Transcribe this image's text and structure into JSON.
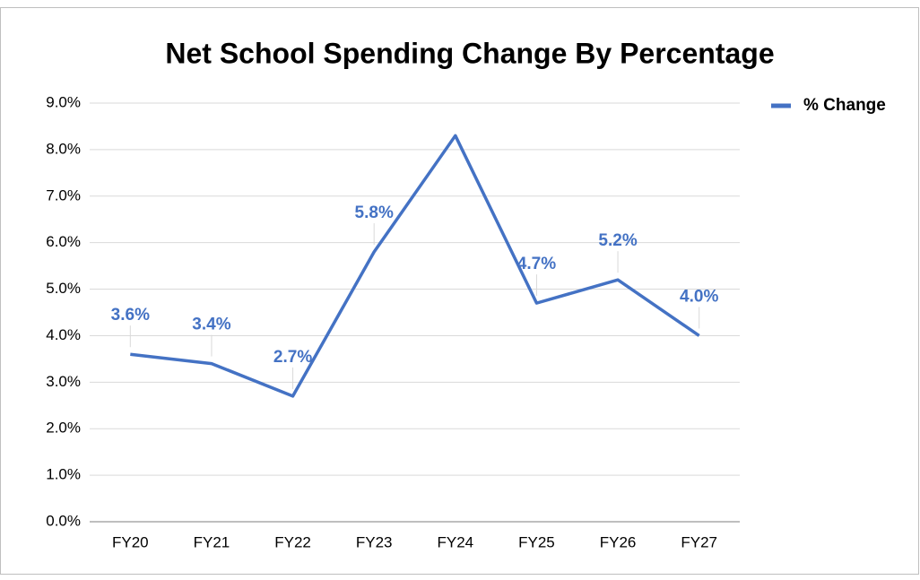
{
  "chart_data": {
    "type": "line",
    "title": "Net School Spending Change By Percentage",
    "categories": [
      "FY20",
      "FY21",
      "FY22",
      "FY23",
      "FY24",
      "FY25",
      "FY26",
      "FY27"
    ],
    "series": [
      {
        "name": "% Change",
        "color": "#4472c4",
        "values": [
          3.6,
          3.4,
          2.7,
          5.8,
          8.3,
          4.7,
          5.2,
          4.0
        ],
        "value_labels": [
          "3.6%",
          "3.4%",
          "2.7%",
          "5.8%",
          null,
          "4.7%",
          "5.2%",
          "4.0%"
        ]
      }
    ],
    "ylim": [
      0,
      9
    ],
    "yticks": [
      {
        "value": 0,
        "label": "0.0%"
      },
      {
        "value": 1,
        "label": "1.0%"
      },
      {
        "value": 2,
        "label": "2.0%"
      },
      {
        "value": 3,
        "label": "3.0%"
      },
      {
        "value": 4,
        "label": "4.0%"
      },
      {
        "value": 5,
        "label": "5.0%"
      },
      {
        "value": 6,
        "label": "6.0%"
      },
      {
        "value": 7,
        "label": "7.0%"
      },
      {
        "value": 8,
        "label": "8.0%"
      },
      {
        "value": 9,
        "label": "9.0%"
      }
    ],
    "grid": true,
    "legend": "right"
  }
}
